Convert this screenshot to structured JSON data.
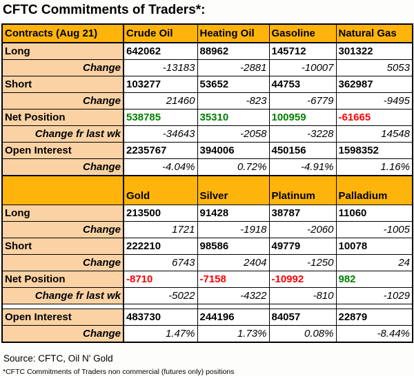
{
  "title": "CFTC Commitments of Traders*:",
  "colors": {
    "header_bg": "#FEB40B",
    "label_bg": "#FAD2A4",
    "positive": "#008000",
    "negative": "#FF0000",
    "border": "#000000",
    "cell_bg": "#FFFFFF"
  },
  "table": {
    "sections": [
      {
        "header": [
          "Contracts (Aug 21)",
          "Crude Oil",
          "Heating Oil",
          "Gasoline",
          "Natural Gas"
        ],
        "rows": [
          {
            "label": "Long",
            "type": "value",
            "cells": [
              "642062",
              "88962",
              "145712",
              "301322"
            ]
          },
          {
            "label": "Change",
            "type": "change",
            "cells": [
              "-13183",
              "-2881",
              "-10007",
              "5053"
            ]
          },
          {
            "label": "Short",
            "type": "value",
            "cells": [
              "103277",
              "53652",
              "44753",
              "362987"
            ]
          },
          {
            "label": "Change",
            "type": "change",
            "cells": [
              "21460",
              "-823",
              "-6779",
              "-9495"
            ]
          },
          {
            "label": "Net Position",
            "type": "value",
            "cells": [
              "538785",
              "35310",
              "100959",
              "-61665"
            ],
            "cell_colors": [
              "positive",
              "positive",
              "positive",
              "negative"
            ]
          },
          {
            "label": "Change fr last wk",
            "type": "change",
            "cells": [
              "-34643",
              "-2058",
              "-3228",
              "14548"
            ]
          },
          {
            "label": "Open Interest",
            "type": "value",
            "cells": [
              "2235767",
              "394006",
              "450156",
              "1598352"
            ]
          },
          {
            "label": "Change",
            "type": "change",
            "cells": [
              "-4.04%",
              "0.72%",
              "-4.91%",
              "1.16%"
            ]
          }
        ]
      },
      {
        "header": [
          "",
          "Gold",
          "Silver",
          "Platinum",
          "Palladium"
        ],
        "rows": [
          {
            "label": "Long",
            "type": "value",
            "cells": [
              "213500",
              "91428",
              "38787",
              "11060"
            ]
          },
          {
            "label": "Change",
            "type": "change",
            "cells": [
              "1721",
              "-1918",
              "-2060",
              "-1005"
            ]
          },
          {
            "label": "Short",
            "type": "value",
            "cells": [
              "222210",
              "98586",
              "49779",
              "10078"
            ]
          },
          {
            "label": "Change",
            "type": "change",
            "cells": [
              "6743",
              "2404",
              "-1250",
              "24"
            ]
          },
          {
            "label": "Net Position",
            "type": "value",
            "cells": [
              "-8710",
              "-7158",
              "-10992",
              "982"
            ],
            "cell_colors": [
              "negative",
              "negative",
              "negative",
              "positive"
            ]
          },
          {
            "label": "Change fr last wk",
            "type": "change",
            "cells": [
              "-5022",
              "-4322",
              "-810",
              "-1029"
            ]
          },
          {
            "type": "spacer"
          },
          {
            "label": "Open Interest",
            "type": "value",
            "cells": [
              "483730",
              "244196",
              "84057",
              "22879"
            ]
          },
          {
            "label": "Change",
            "type": "change",
            "cells": [
              "1.47%",
              "1.73%",
              "0.08%",
              "-8.44%"
            ]
          }
        ]
      }
    ]
  },
  "footer": {
    "source": "Source: CFTC, Oil N' Gold",
    "note": "*CFTC Commitments of Traders non commercial (futures only) positions"
  },
  "chart_data": {
    "type": "table",
    "title": "CFTC Commitments of Traders*:",
    "report_date": "Aug 21",
    "sections": [
      {
        "columns": [
          "Crude Oil",
          "Heating Oil",
          "Gasoline",
          "Natural Gas"
        ],
        "rows": [
          {
            "label": "Long",
            "values": [
              642062,
              88962,
              145712,
              301322
            ]
          },
          {
            "label": "Long Change",
            "values": [
              -13183,
              -2881,
              -10007,
              5053
            ]
          },
          {
            "label": "Short",
            "values": [
              103277,
              53652,
              44753,
              362987
            ]
          },
          {
            "label": "Short Change",
            "values": [
              21460,
              -823,
              -6779,
              -9495
            ]
          },
          {
            "label": "Net Position",
            "values": [
              538785,
              35310,
              100959,
              -61665
            ]
          },
          {
            "label": "Net Position Change fr last wk",
            "values": [
              -34643,
              -2058,
              -3228,
              14548
            ]
          },
          {
            "label": "Open Interest",
            "values": [
              2235767,
              394006,
              450156,
              1598352
            ]
          },
          {
            "label": "Open Interest Change",
            "values": [
              "-4.04%",
              "0.72%",
              "-4.91%",
              "1.16%"
            ]
          }
        ]
      },
      {
        "columns": [
          "Gold",
          "Silver",
          "Platinum",
          "Palladium"
        ],
        "rows": [
          {
            "label": "Long",
            "values": [
              213500,
              91428,
              38787,
              11060
            ]
          },
          {
            "label": "Long Change",
            "values": [
              1721,
              -1918,
              -2060,
              -1005
            ]
          },
          {
            "label": "Short",
            "values": [
              222210,
              98586,
              49779,
              10078
            ]
          },
          {
            "label": "Short Change",
            "values": [
              6743,
              2404,
              -1250,
              24
            ]
          },
          {
            "label": "Net Position",
            "values": [
              -8710,
              -7158,
              -10992,
              982
            ]
          },
          {
            "label": "Net Position Change fr last wk",
            "values": [
              -5022,
              -4322,
              -810,
              -1029
            ]
          },
          {
            "label": "Open Interest",
            "values": [
              483730,
              244196,
              84057,
              22879
            ]
          },
          {
            "label": "Open Interest Change",
            "values": [
              "1.47%",
              "1.73%",
              "0.08%",
              "-8.44%"
            ]
          }
        ]
      }
    ]
  }
}
